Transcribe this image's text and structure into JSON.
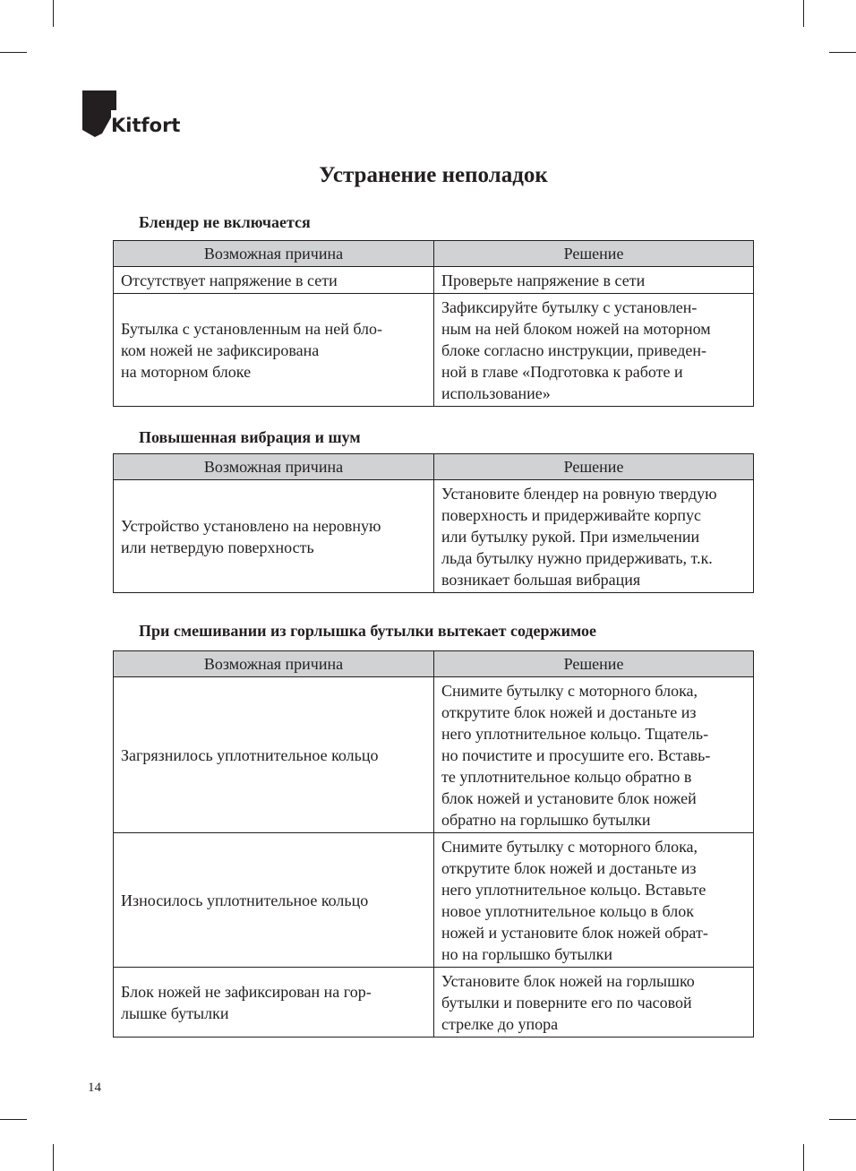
{
  "brand": {
    "name": "Kitfort",
    "page_number": "14"
  },
  "title": "Устранение неполадок",
  "sections": [
    {
      "heading": "Блендер не включается",
      "header": {
        "cause": "Возможная причина",
        "solution": "Решение"
      },
      "rows": [
        {
          "cause": [
            "Отсутствует напряжение в сети"
          ],
          "solution": [
            "Проверьте напряжение в сети"
          ]
        },
        {
          "cause": [
            "Бутылка с установленным на ней бло-",
            "ком ножей не зафиксирована",
            "на моторном блоке"
          ],
          "solution": [
            "Зафиксируйте бутылку с установлен-",
            "ным на ней блоком ножей на моторном",
            "блоке согласно инструкции, приведен-",
            "ной в главе «Подготовка к работе и",
            "использование»"
          ]
        }
      ]
    },
    {
      "heading": "Повышенная вибрация и шум",
      "header": {
        "cause": "Возможная причина",
        "solution": "Решение"
      },
      "rows": [
        {
          "cause": [
            "Устройство установлено на неровную",
            "или нетвердую поверхность"
          ],
          "solution": [
            "Установите блендер на ровную твердую",
            "поверхность и придерживайте корпус",
            "или бутылку рукой. При измельчении",
            "льда бутылку нужно придерживать, т.к.",
            "возникает большая вибрация"
          ]
        }
      ]
    },
    {
      "heading": "При смешивании из горлышка бутылки вытекает содержимое",
      "header": {
        "cause": "Возможная причина",
        "solution": "Решение"
      },
      "rows": [
        {
          "cause": [
            "Загрязнилось уплотнительное кольцо"
          ],
          "solution": [
            "Снимите бутылку с моторного блока,",
            "открутите блок ножей и достаньте из",
            "него уплотнительное кольцо. Тщатель-",
            "но почистите и просушите его. Вставь-",
            "те уплотнительное кольцо обратно в",
            "блок ножей и установите блок ножей",
            "обратно на горлышко бутылки"
          ]
        },
        {
          "cause": [
            "Износилось уплотнительное кольцо"
          ],
          "solution": [
            "Снимите бутылку с моторного блока,",
            "открутите блок ножей и достаньте из",
            "него уплотнительное кольцо. Вставьте",
            "новое уплотнительное кольцо в блок",
            "ножей и установите блок ножей обрат-",
            "но на горлышко бутылки"
          ]
        },
        {
          "cause": [
            "Блок ножей не зафиксирован на гор-",
            "лышке бутылки"
          ],
          "solution": [
            "Установите блок ножей на горлышко",
            "бутылки и поверните его по часовой",
            "стрелке до упора"
          ]
        }
      ]
    }
  ]
}
